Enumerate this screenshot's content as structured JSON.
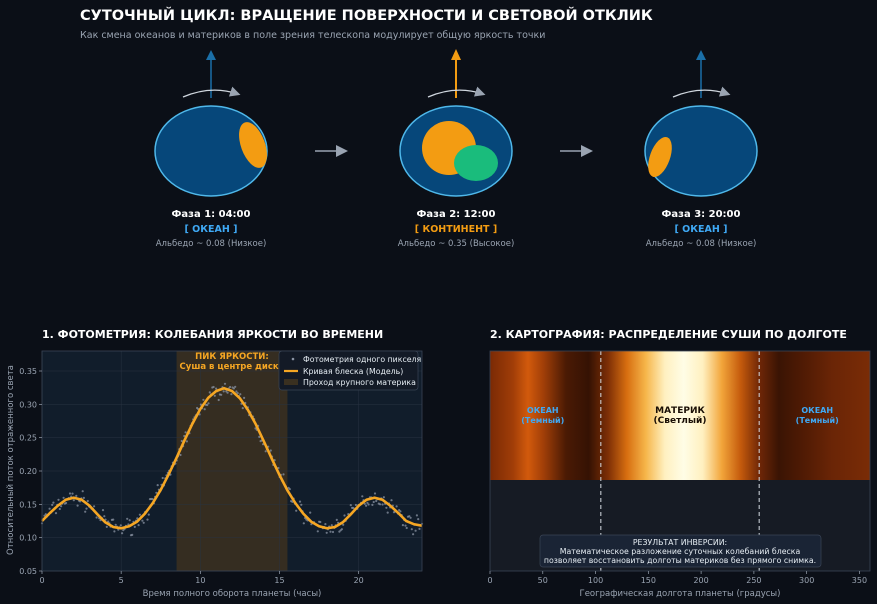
{
  "header": {
    "title": "СУТОЧНЫЙ ЦИКЛ: ВРАЩЕНИЕ ПОВЕРХНОСТИ И СВЕТОВОЙ ОТКЛИК",
    "subtitle": "Как смена океанов и материков в поле зрения телескопа модулирует общую яркость точки"
  },
  "phases": [
    {
      "label": "Фаза 1: 04:00",
      "type": "[ ОКЕАН ]",
      "albedo": "Альбедо ~ 0.08 (Низкое)",
      "type_color": "#3fa9f5"
    },
    {
      "label": "Фаза 2: 12:00",
      "type": "[ КОНТИНЕНТ ]",
      "albedo": "Альбедо ~ 0.35 (Высокое)",
      "type_color": "#f39c12"
    },
    {
      "label": "Фаза 3: 20:00",
      "type": "[ ОКЕАН ]",
      "albedo": "Альбедо ~ 0.08 (Низкое)",
      "type_color": "#3fa9f5"
    }
  ],
  "colors": {
    "ocean": "#06477a",
    "ocean_border": "#4fb8ea",
    "land": "#f39c12",
    "vegetation": "#1abc7c",
    "curve": "#f5a623",
    "points": "#8a93a3"
  },
  "chart_data": [
    {
      "type": "line",
      "title": "1. ФОТОМЕТРИЯ: КОЛЕБАНИЯ ЯРКОСТИ ВО ВРЕМЕНИ",
      "xlabel": "Время полного оборота планеты (часы)",
      "ylabel": "Относительный поток отраженного света",
      "xlim": [
        0,
        24
      ],
      "ylim": [
        0.05,
        0.38
      ],
      "xticks": [
        0,
        5,
        10,
        15,
        20
      ],
      "yticks": [
        0.05,
        0.1,
        0.15,
        0.2,
        0.25,
        0.3,
        0.35
      ],
      "highlight_span": [
        8.5,
        15.5
      ],
      "annotation": {
        "line1": "ПИК ЯРКОСТИ:",
        "line2": "Суша в центре диска",
        "x": 12,
        "y": 0.37
      },
      "legend": {
        "position": "top-right",
        "entries": [
          "Фотометрия одного пикселя",
          "Кривая блеска (Модель)",
          "Проход крупного материка"
        ]
      },
      "series": [
        {
          "name": "Кривая блеска (Модель)",
          "x": [
            0,
            0.5,
            1,
            1.5,
            2,
            2.5,
            3,
            3.5,
            4,
            4.5,
            5,
            5.5,
            6,
            6.5,
            7,
            7.5,
            8,
            8.5,
            9,
            9.5,
            10,
            10.5,
            11,
            11.5,
            12,
            12.5,
            13,
            13.5,
            14,
            14.5,
            15,
            15.5,
            16,
            16.5,
            17,
            17.5,
            18,
            18.5,
            19,
            19.5,
            20,
            20.5,
            21,
            21.5,
            22,
            22.5,
            23,
            23.5,
            24
          ],
          "y": [
            0.125,
            0.137,
            0.148,
            0.157,
            0.16,
            0.157,
            0.148,
            0.135,
            0.123,
            0.116,
            0.114,
            0.117,
            0.124,
            0.136,
            0.152,
            0.172,
            0.195,
            0.22,
            0.246,
            0.271,
            0.293,
            0.31,
            0.32,
            0.324,
            0.32,
            0.309,
            0.292,
            0.27,
            0.245,
            0.219,
            0.194,
            0.171,
            0.152,
            0.136,
            0.124,
            0.117,
            0.114,
            0.116,
            0.123,
            0.135,
            0.148,
            0.157,
            0.16,
            0.157,
            0.148,
            0.137,
            0.125,
            0.12,
            0.118
          ]
        }
      ]
    },
    {
      "type": "heatmap",
      "title": "2. КАРТОГРАФИЯ: РАСПРЕДЕЛЕНИЕ СУШИ ПО ДОЛГОТЕ",
      "xlabel": "Географическая долгота планеты (градусы)",
      "xlim": [
        0,
        360
      ],
      "xticks": [
        0,
        50,
        100,
        150,
        200,
        250,
        300,
        350
      ],
      "boundaries": [
        105,
        255
      ],
      "labels": [
        {
          "line1": "ОКЕАН",
          "line2": "(Темный)",
          "x": 50
        },
        {
          "line1": "МАТЕРИК",
          "line2": "(Светлый)",
          "x": 180
        },
        {
          "line1": "ОКЕАН",
          "line2": "(Темный)",
          "x": 310
        }
      ],
      "result": {
        "line1": "РЕЗУЛЬТАТ ИНВЕРСИИ:",
        "line2": "Математическое разложение суточных колебаний блеска",
        "line3": "позволяет восстановить долготы материков без прямого снимка."
      }
    }
  ]
}
